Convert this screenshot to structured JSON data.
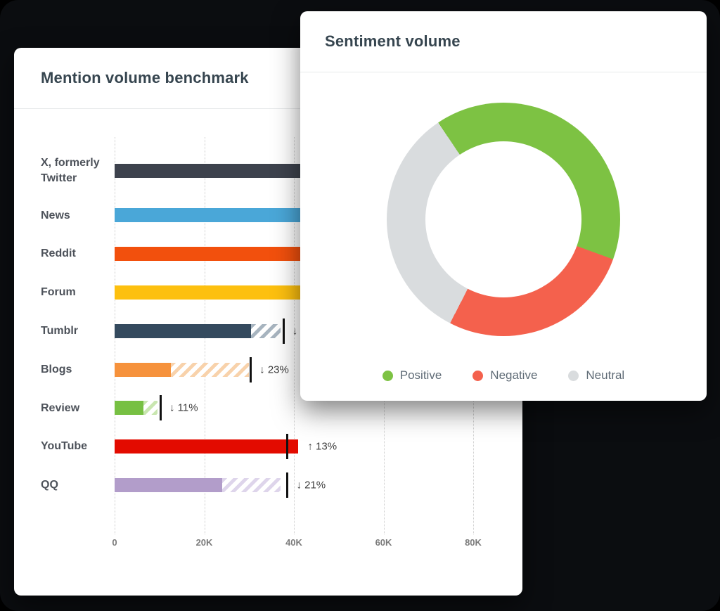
{
  "benchmark": {
    "title": "Mention volume benchmark",
    "axis_max": 80000,
    "axis_ticks": [
      {
        "label": "0",
        "value": 0
      },
      {
        "label": "20K",
        "value": 20000
      },
      {
        "label": "40K",
        "value": 40000
      },
      {
        "label": "60K",
        "value": 60000
      },
      {
        "label": "80K",
        "value": 80000
      }
    ],
    "rows": [
      {
        "label": "X, formerly Twitter",
        "value": 52000,
        "color": "#3d424d"
      },
      {
        "label": "News",
        "value": 51000,
        "color": "#4aa7d8"
      },
      {
        "label": "Reddit",
        "value": 50500,
        "color": "#f2500d"
      },
      {
        "label": "Forum",
        "value": 49500,
        "color": "#fdc00f"
      },
      {
        "label": "Tumblr",
        "value": 30500,
        "color": "#344a5e",
        "hatch_to": 37000,
        "hatch_color": "#a7b4bf",
        "marker": 37600,
        "change": "↓"
      },
      {
        "label": "Blogs",
        "value": 12500,
        "color": "#f6923c",
        "hatch_to": 30000,
        "hatch_color": "#f8d2ab",
        "marker": 30300,
        "change": "↓ 23%"
      },
      {
        "label": "Review",
        "value": 6500,
        "color": "#77c043",
        "hatch_to": 9500,
        "hatch_color": "#c9e6b0",
        "marker": 10200,
        "change": "↓ 11%"
      },
      {
        "label": "YouTube",
        "value": 41000,
        "color": "#e30b00",
        "marker": 38500,
        "change": "↑ 13%"
      },
      {
        "label": "QQ",
        "value": 24000,
        "color": "#b29dca",
        "hatch_to": 37000,
        "hatch_color": "#ded5eb",
        "marker": 38500,
        "change": "↓ 21%"
      }
    ]
  },
  "sentiment": {
    "title": "Sentiment volume",
    "donut": {
      "start_angle_deg": -34,
      "segments": [
        {
          "label": "Positive",
          "percent": 40,
          "color": "#7dc243"
        },
        {
          "label": "Negative",
          "percent": 27,
          "color": "#f4614d"
        },
        {
          "label": "Neutral",
          "percent": 33,
          "color": "#d9dcde"
        }
      ]
    },
    "legend": [
      {
        "label": "Positive",
        "color": "#7dc243"
      },
      {
        "label": "Negative",
        "color": "#f4614d"
      },
      {
        "label": "Neutral",
        "color": "#d9dcde"
      }
    ]
  },
  "chart_data": [
    {
      "type": "bar",
      "orientation": "horizontal",
      "title": "Mention volume benchmark",
      "categories": [
        "X, formerly Twitter",
        "News",
        "Reddit",
        "Forum",
        "Tumblr",
        "Blogs",
        "Review",
        "YouTube",
        "QQ"
      ],
      "series": [
        {
          "name": "mention volume (solid)",
          "values": [
            52000,
            51000,
            50500,
            49500,
            30500,
            12500,
            6500,
            41000,
            24000
          ]
        },
        {
          "name": "benchmark extension (hatched)",
          "values": [
            null,
            null,
            null,
            null,
            37000,
            30000,
            9500,
            null,
            37000
          ]
        },
        {
          "name": "benchmark marker",
          "values": [
            null,
            null,
            null,
            null,
            37600,
            30300,
            10200,
            38500,
            38500
          ]
        }
      ],
      "changes": [
        null,
        null,
        null,
        null,
        "↓",
        "↓ 23%",
        "↓ 11%",
        "↑ 13%",
        "↓ 21%"
      ],
      "xlim": [
        0,
        80000
      ],
      "tick_labels": [
        "0",
        "20K",
        "40K",
        "60K",
        "80K"
      ],
      "grid": "vertical-dotted",
      "legend_position": "none"
    },
    {
      "type": "pie",
      "donut": true,
      "title": "Sentiment volume",
      "labels": [
        "Positive",
        "Negative",
        "Neutral"
      ],
      "values": [
        40,
        27,
        33
      ],
      "unit": "%",
      "colors": [
        "#7dc243",
        "#f4614d",
        "#d9dcde"
      ],
      "start_angle_deg": -34,
      "legend_position": "bottom"
    }
  ]
}
